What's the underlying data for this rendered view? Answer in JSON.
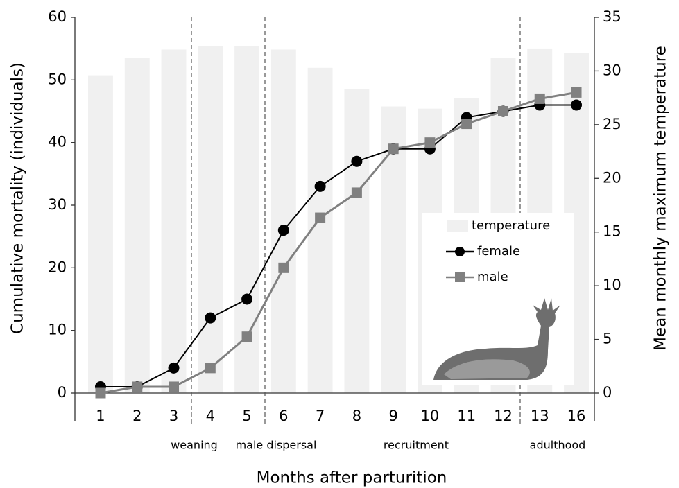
{
  "chart_data": {
    "type": "combo",
    "categories": [
      "1",
      "2",
      "3",
      "4",
      "5",
      "6",
      "7",
      "8",
      "9",
      "10",
      "11",
      "12",
      "13",
      "16"
    ],
    "series": [
      {
        "name": "temperature",
        "type": "bar",
        "axis": "y2",
        "color": "#f0f0f0",
        "values": [
          29.6,
          31.2,
          32.0,
          32.3,
          32.3,
          32.0,
          30.3,
          28.3,
          26.7,
          26.5,
          27.5,
          31.2,
          32.1,
          31.7
        ]
      },
      {
        "name": "female",
        "type": "line",
        "marker": "circle",
        "color": "#000000",
        "values": [
          1,
          1,
          4,
          12,
          15,
          26,
          33,
          37,
          39,
          39,
          44,
          45,
          46,
          46
        ]
      },
      {
        "name": "male",
        "type": "line",
        "marker": "square",
        "color": "#808080",
        "values": [
          0,
          1,
          1,
          4,
          9,
          20,
          28,
          32,
          39,
          40,
          43,
          45,
          47,
          48
        ]
      }
    ],
    "ylabel": "Cumulative mortality (individuals)",
    "y2label": "Mean monthly maximum temperature",
    "xlabel": "Months after parturition",
    "ylim": [
      0,
      60
    ],
    "yticks": [
      0,
      10,
      20,
      30,
      40,
      50,
      60
    ],
    "y2lim": [
      0,
      35
    ],
    "y2ticks": [
      0,
      5,
      10,
      15,
      20,
      25,
      30,
      35
    ],
    "annotations": [
      "weaning",
      "male dispersal",
      "recruitment",
      "adulthood"
    ],
    "legend": "lower right"
  }
}
